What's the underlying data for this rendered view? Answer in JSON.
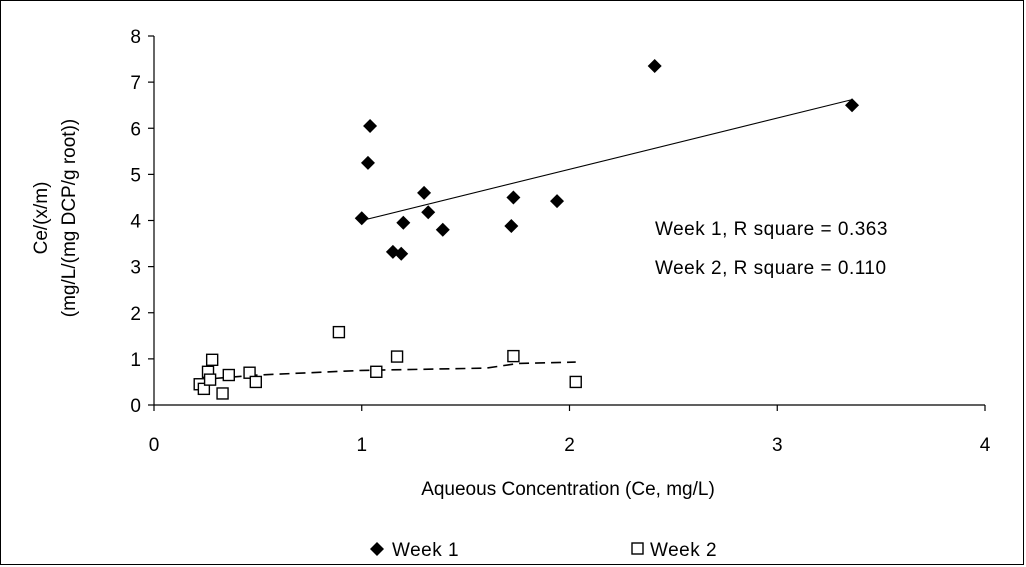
{
  "chart_data": {
    "type": "scatter",
    "xlabel": "Aqueous Concentration (Ce, mg/L)",
    "ylabel_lines": [
      "Ce/(x/m)",
      "(mg/L/(mg DCP/g root))"
    ],
    "xlim": [
      0,
      4
    ],
    "ylim": [
      0,
      8
    ],
    "x_ticks": [
      "0",
      "1",
      "2",
      "3",
      "4"
    ],
    "y_ticks": [
      "0",
      "1",
      "2",
      "3",
      "4",
      "5",
      "6",
      "7",
      "8"
    ],
    "grid": false,
    "legend_position": "bottom",
    "annotations": [
      "Week 1, R square = 0.363",
      "Week 2, R square = 0.110"
    ],
    "series": [
      {
        "name": "Week 1",
        "marker": "filled-diamond",
        "points": [
          [
            1.0,
            4.05
          ],
          [
            1.03,
            5.25
          ],
          [
            1.04,
            6.05
          ],
          [
            1.15,
            3.32
          ],
          [
            1.19,
            3.28
          ],
          [
            1.2,
            3.95
          ],
          [
            1.3,
            4.6
          ],
          [
            1.32,
            4.18
          ],
          [
            1.39,
            3.8
          ],
          [
            1.72,
            3.88
          ],
          [
            1.73,
            4.5
          ],
          [
            1.94,
            4.42
          ],
          [
            2.41,
            7.35
          ],
          [
            3.36,
            6.5
          ]
        ],
        "trendline": {
          "style": "solid",
          "from": [
            1.0,
            4.0
          ],
          "to": [
            3.36,
            6.62
          ]
        }
      },
      {
        "name": "Week 2",
        "marker": "open-square",
        "points": [
          [
            0.22,
            0.45
          ],
          [
            0.24,
            0.35
          ],
          [
            0.26,
            0.72
          ],
          [
            0.27,
            0.55
          ],
          [
            0.28,
            0.98
          ],
          [
            0.33,
            0.25
          ],
          [
            0.36,
            0.65
          ],
          [
            0.46,
            0.7
          ],
          [
            0.49,
            0.5
          ],
          [
            0.89,
            1.58
          ],
          [
            1.07,
            0.72
          ],
          [
            1.17,
            1.05
          ],
          [
            1.73,
            1.06
          ],
          [
            2.03,
            0.5
          ]
        ],
        "trendline": {
          "style": "dashed",
          "points": [
            [
              0.22,
              0.55
            ],
            [
              0.5,
              0.65
            ],
            [
              1.0,
              0.75
            ],
            [
              1.6,
              0.8
            ],
            [
              1.75,
              0.9
            ],
            [
              2.03,
              0.93
            ]
          ]
        }
      }
    ]
  }
}
